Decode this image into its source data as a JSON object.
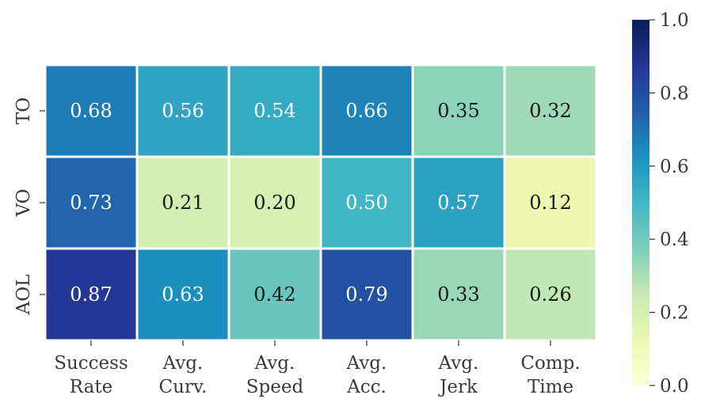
{
  "chart_data": {
    "type": "heatmap",
    "title": "",
    "rows": [
      "TO",
      "VO",
      "AOL"
    ],
    "columns": [
      "Success\nRate",
      "Avg.\nCurv.",
      "Avg.\nSpeed",
      "Avg.\nAcc.",
      "Avg.\nJerk",
      "Comp.\nTime"
    ],
    "values": [
      [
        0.68,
        0.56,
        0.54,
        0.66,
        0.35,
        0.32
      ],
      [
        0.73,
        0.21,
        0.2,
        0.5,
        0.57,
        0.12
      ],
      [
        0.87,
        0.63,
        0.42,
        0.79,
        0.33,
        0.26
      ]
    ],
    "value_labels": [
      [
        "0.68",
        "0.56",
        "0.54",
        "0.66",
        "0.35",
        "0.32"
      ],
      [
        "0.73",
        "0.21",
        "0.20",
        "0.50",
        "0.57",
        "0.12"
      ],
      [
        "0.87",
        "0.63",
        "0.42",
        "0.79",
        "0.33",
        "0.26"
      ]
    ],
    "colormap": "YlGnBu",
    "vmin": 0.0,
    "vmax": 1.0,
    "colorbar": {
      "ticks": [
        0.0,
        0.2,
        0.4,
        0.6,
        0.8,
        1.0
      ],
      "tick_labels": [
        "0.0",
        "0.2",
        "0.4",
        "0.6",
        "0.8",
        "1.0"
      ],
      "position": "right"
    },
    "grid_line_color": "#ffffff",
    "text_colors": {
      "dark": "#1a1a1a",
      "light": "#ffffff"
    }
  }
}
